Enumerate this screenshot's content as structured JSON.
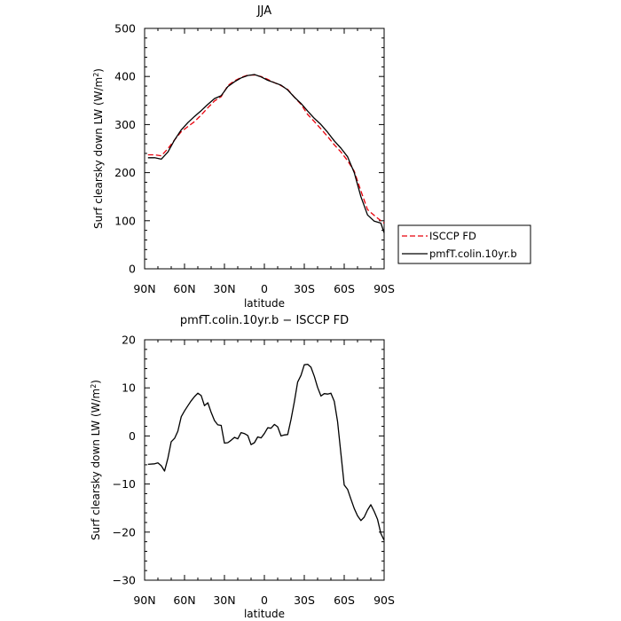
{
  "chart_data": [
    {
      "type": "line",
      "title": "JJA",
      "xlabel": "latitude",
      "ylabel": "Surf clearsky down LW (W/m²)",
      "ylabel_main": "Surf clearsky down LW (W/m",
      "ylabel_sup": "2",
      "ylabel_end": ")",
      "xlim": [
        -90,
        90
      ],
      "ylim": [
        0,
        500
      ],
      "xticks": [
        -90,
        -60,
        -30,
        0,
        30,
        60,
        90
      ],
      "xtick_labels": [
        "90N",
        "60N",
        "30N",
        "0",
        "30S",
        "60S",
        "90S"
      ],
      "yticks": [
        0,
        100,
        200,
        300,
        400,
        500
      ],
      "ytick_labels": [
        "0",
        "100",
        "200",
        "300",
        "400",
        "500"
      ],
      "legend": {
        "placement": "right, outside plot"
      },
      "series": [
        {
          "name": "ISCCP FD",
          "color": "#e8000b",
          "dash": "dashed",
          "x": [
            -87.5,
            -82.5,
            -77.5,
            -72.5,
            -67.5,
            -62.5,
            -57.5,
            -52.5,
            -47.5,
            -42.5,
            -37.5,
            -32.5,
            -27.5,
            -22.5,
            -17.5,
            -12.5,
            -7.5,
            -2.5,
            2.5,
            7.5,
            12.5,
            17.5,
            22.5,
            27.5,
            32.5,
            37.5,
            42.5,
            47.5,
            52.5,
            57.5,
            62.5,
            67.5,
            72.5,
            77.5,
            82.5,
            87.5,
            90
          ],
          "y": [
            237,
            237,
            235,
            250,
            268,
            285,
            296,
            306,
            320,
            335,
            349,
            358,
            381,
            391,
            398,
            403,
            403,
            400,
            394,
            387,
            381,
            373,
            357,
            342,
            321,
            306,
            291,
            275,
            258,
            243,
            225,
            203,
            162,
            123,
            111,
            100,
            95
          ]
        },
        {
          "name": "pmfT.colin.10yr.b",
          "color": "#000000",
          "dash": "solid",
          "x": [
            -87.5,
            -82.5,
            -77.5,
            -72.5,
            -67.5,
            -62.5,
            -57.5,
            -52.5,
            -47.5,
            -42.5,
            -37.5,
            -32.5,
            -27.5,
            -22.5,
            -17.5,
            -12.5,
            -7.5,
            -2.5,
            2.5,
            7.5,
            12.5,
            17.5,
            22.5,
            27.5,
            32.5,
            37.5,
            42.5,
            47.5,
            52.5,
            57.5,
            62.5,
            67.5,
            72.5,
            77.5,
            82.5,
            87.5,
            90
          ],
          "y": [
            231,
            231,
            228,
            243,
            268,
            289,
            304,
            317,
            329,
            342,
            354,
            360,
            379,
            389,
            397,
            402,
            404,
            399,
            392,
            387,
            382,
            372,
            357,
            344,
            328,
            313,
            300,
            284,
            266,
            251,
            233,
            200,
            150,
            112,
            99,
            95,
            75
          ]
        }
      ]
    },
    {
      "type": "line",
      "title": "pmfT.colin.10yr.b − ISCCP FD",
      "xlabel": "latitude",
      "ylabel": "Surf clearsky down LW (W/m²)",
      "ylabel_main": "Surf clearsky down LW (W/m",
      "ylabel_sup": "2",
      "ylabel_end": ")",
      "xlim": [
        -90,
        90
      ],
      "ylim": [
        -30,
        20
      ],
      "xticks": [
        -90,
        -60,
        -30,
        0,
        30,
        60,
        90
      ],
      "xtick_labels": [
        "90N",
        "60N",
        "30N",
        "0",
        "30S",
        "60S",
        "90S"
      ],
      "yticks": [
        -30,
        -20,
        -10,
        0,
        10,
        20
      ],
      "ytick_labels": [
        "−30",
        "−20",
        "−10",
        "0",
        "10",
        "20"
      ],
      "series": [
        {
          "color": "#000000",
          "dash": "solid",
          "x": [
            -87.5,
            -82.5,
            -80,
            -77.5,
            -75,
            -72.5,
            -70,
            -67.5,
            -65,
            -62.5,
            -60,
            -57.5,
            -55,
            -52.5,
            -50,
            -47.5,
            -45,
            -42.5,
            -40,
            -37.5,
            -35,
            -32.5,
            -30,
            -27.5,
            -25,
            -22.5,
            -20,
            -17.5,
            -15,
            -12.5,
            -10,
            -7.5,
            -5,
            -2.5,
            0,
            2.5,
            5,
            7.5,
            10,
            12.5,
            15,
            17.5,
            20,
            22.5,
            25,
            27.5,
            30,
            32.5,
            35,
            37.5,
            40,
            42.5,
            45,
            47.5,
            50,
            52.5,
            55,
            57.5,
            60,
            62.5,
            65,
            67.5,
            70,
            72.5,
            75,
            77.5,
            80,
            82.5,
            85,
            87.5,
            90
          ],
          "y": [
            -5.9,
            -5.8,
            -5.6,
            -6.2,
            -7.3,
            -4.6,
            -1.2,
            -0.5,
            1.0,
            4.0,
            5.2,
            6.3,
            7.3,
            8.2,
            8.9,
            8.4,
            6.3,
            6.9,
            4.9,
            3.2,
            2.3,
            2.2,
            -1.5,
            -1.4,
            -0.9,
            -0.3,
            -0.6,
            0.7,
            0.5,
            0.1,
            -1.8,
            -1.4,
            -0.2,
            -0.4,
            0.5,
            1.7,
            1.6,
            2.4,
            1.9,
            0.0,
            0.2,
            0.3,
            3.4,
            7.1,
            11.2,
            12.6,
            14.8,
            14.9,
            14.3,
            12.4,
            10.1,
            8.3,
            8.8,
            8.7,
            8.9,
            7.2,
            3.0,
            -3.7,
            -10.2,
            -11.1,
            -13.1,
            -15.1,
            -16.6,
            -17.6,
            -16.9,
            -15.4,
            -14.3,
            -15.7,
            -17.3,
            -20.3,
            -21.7
          ]
        }
      ]
    }
  ]
}
